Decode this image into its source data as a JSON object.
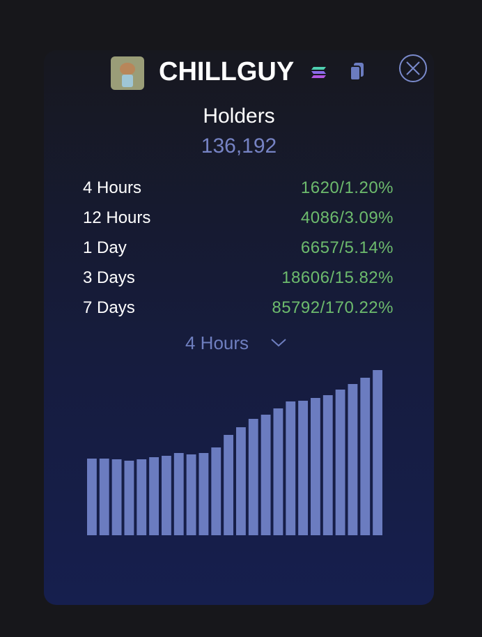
{
  "header": {
    "title": "CHILLGUY"
  },
  "holders": {
    "label": "Holders",
    "value": "136,192"
  },
  "rows": [
    {
      "label": "4 Hours",
      "value": "1620/1.20%"
    },
    {
      "label": "12 Hours",
      "value": "4086/3.09%"
    },
    {
      "label": "1 Day",
      "value": "6657/5.14%"
    },
    {
      "label": "3 Days",
      "value": "18606/15.82%"
    },
    {
      "label": "7 Days",
      "value": "85792/170.22%"
    }
  ],
  "dropdown": {
    "label": "4 Hours"
  },
  "chart_data": {
    "type": "bar",
    "color": "#6b7cc0",
    "values": [
      110,
      110,
      109,
      107,
      109,
      112,
      114,
      118,
      116,
      118,
      126,
      144,
      155,
      167,
      173,
      182,
      192,
      193,
      197,
      201,
      209,
      217,
      226,
      237
    ]
  }
}
